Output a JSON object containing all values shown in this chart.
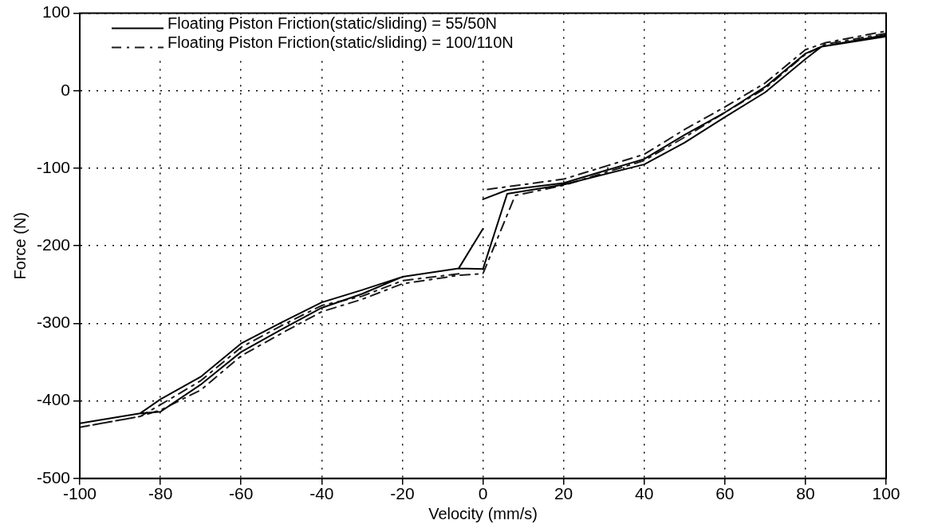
{
  "chart_data": {
    "type": "line",
    "xlabel": "Velocity (mm/s)",
    "ylabel": "Force (N)",
    "xlim": [
      -100,
      100
    ],
    "xticks": [
      -100,
      -80,
      -60,
      -40,
      -20,
      0,
      20,
      40,
      60,
      80,
      100
    ],
    "ylim": [
      -500,
      100
    ],
    "yticks": [
      -500,
      -400,
      -300,
      -200,
      -100,
      0,
      100
    ],
    "grid": true,
    "legend": "top left",
    "marker": "none",
    "series": [
      {
        "name": "Floating Piston Friction(static/sliding) = 55/50N",
        "color": "#000000",
        "line_style": "solid",
        "x": [
          -100,
          -85,
          -80,
          -70,
          -60,
          -50,
          -40,
          -30,
          -20,
          -6,
          0,
          6,
          20,
          40,
          50,
          60,
          70,
          80,
          84,
          100,
          100,
          84,
          80,
          70,
          60,
          50,
          40,
          20,
          6,
          0,
          null,
          0,
          -6,
          -20,
          -30,
          -40,
          -50,
          -60,
          -70,
          -80,
          -85,
          -100
        ],
        "values": [
          -429,
          -416,
          -414,
          -379,
          -337,
          -308,
          -280,
          -262,
          -240,
          -229,
          -230,
          -133,
          -121,
          -95,
          -67,
          -34,
          -2,
          41,
          57,
          70,
          72,
          57,
          48,
          5,
          -28,
          -57,
          -88,
          -119,
          -128,
          -140,
          null,
          -178,
          -229,
          -240,
          -257,
          -273,
          -299,
          -326,
          -369,
          -398,
          -416,
          -429
        ]
      },
      {
        "name": "Floating Piston Friction(static/sliding) = 100/110N",
        "color": "#1a1a1a",
        "line_style": "dashed",
        "x": [
          -100,
          -85,
          -80,
          -70,
          -60,
          -50,
          -40,
          -30,
          -20,
          -6,
          0,
          8,
          20,
          40,
          50,
          60,
          70,
          80,
          85,
          100,
          100,
          85,
          80,
          70,
          60,
          50,
          40,
          20,
          0,
          null,
          -6,
          -20,
          -30,
          -40,
          -50,
          -60,
          -70,
          -80,
          -85,
          -100
        ],
        "values": [
          -434,
          -420,
          -412,
          -386,
          -342,
          -313,
          -285,
          -269,
          -249,
          -238,
          -236,
          -135,
          -122,
          -90,
          -60,
          -28,
          3,
          47,
          60,
          74,
          77,
          62,
          53,
          10,
          -21,
          -50,
          -82,
          -114,
          -128,
          null,
          -236,
          -245,
          -265,
          -277,
          -303,
          -331,
          -374,
          -405,
          -420,
          -434
        ]
      }
    ]
  }
}
